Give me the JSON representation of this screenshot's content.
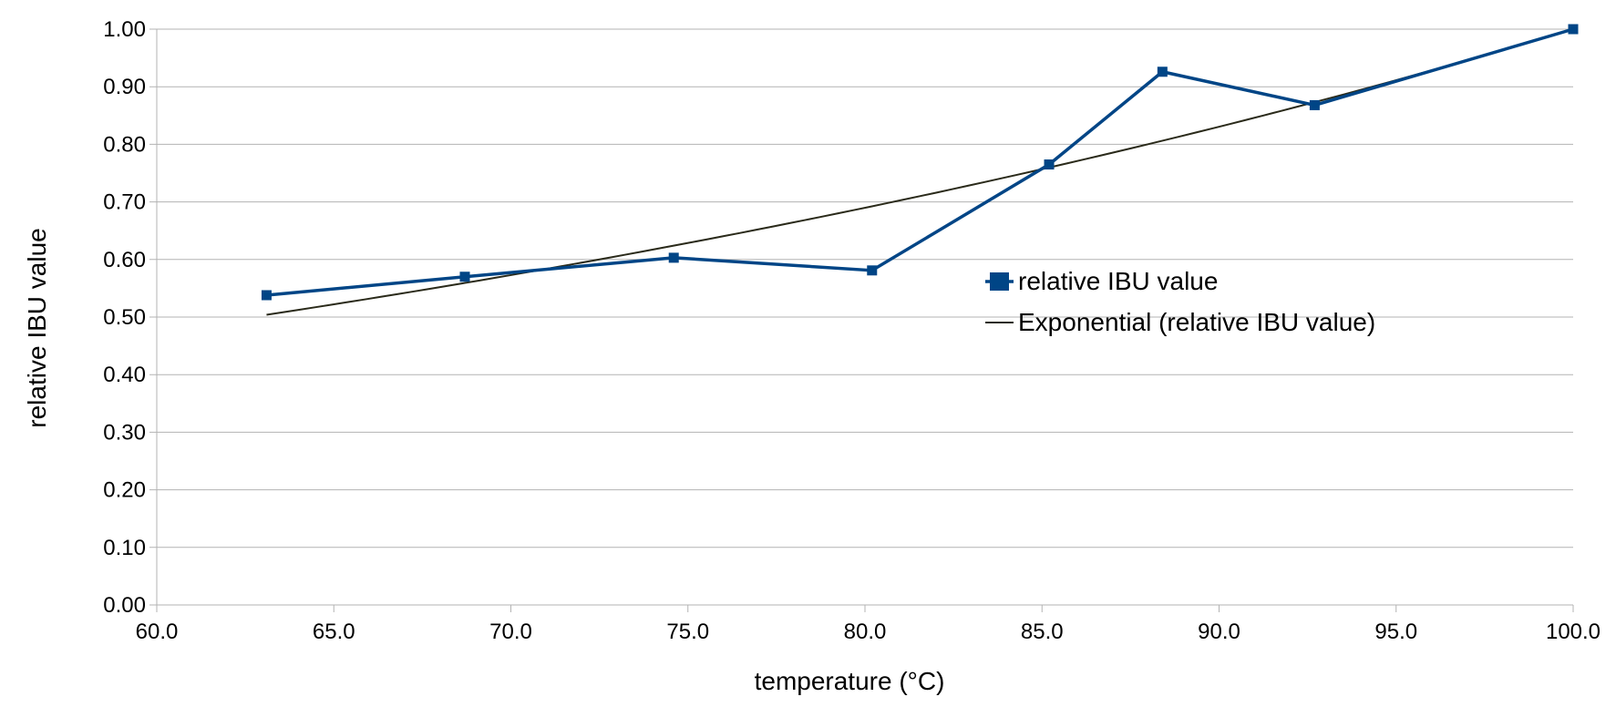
{
  "colors": {
    "series": "#004586",
    "trend": "#2a2a1a",
    "grid": "#b3b3b3",
    "axis": "#b3b3b3",
    "background": "#ffffff"
  },
  "chart_data": {
    "type": "line",
    "title": "",
    "xlabel": "temperature (°C)",
    "ylabel": "relative IBU value",
    "xlim": [
      60,
      100
    ],
    "ylim": [
      0,
      1
    ],
    "x_ticks": [
      "60.0",
      "65.0",
      "70.0",
      "75.0",
      "80.0",
      "85.0",
      "90.0",
      "95.0",
      "100.0"
    ],
    "y_ticks": [
      "0.00",
      "0.10",
      "0.20",
      "0.30",
      "0.40",
      "0.50",
      "0.60",
      "0.70",
      "0.80",
      "0.90",
      "1.00"
    ],
    "grid": "horizontal",
    "legend_position": "center-right",
    "series": [
      {
        "name": "relative IBU value",
        "marker": "square",
        "x": [
          63.1,
          68.7,
          74.6,
          80.2,
          85.2,
          88.4,
          92.7,
          100.0
        ],
        "y": [
          0.538,
          0.57,
          0.603,
          0.581,
          0.765,
          0.926,
          0.868,
          1.0
        ]
      }
    ],
    "trendline": {
      "name": "Exponential (relative IBU value)",
      "type": "exponential",
      "x_range": [
        63.1,
        100.0
      ],
      "y_range": [
        0.504,
        1.0
      ]
    }
  }
}
